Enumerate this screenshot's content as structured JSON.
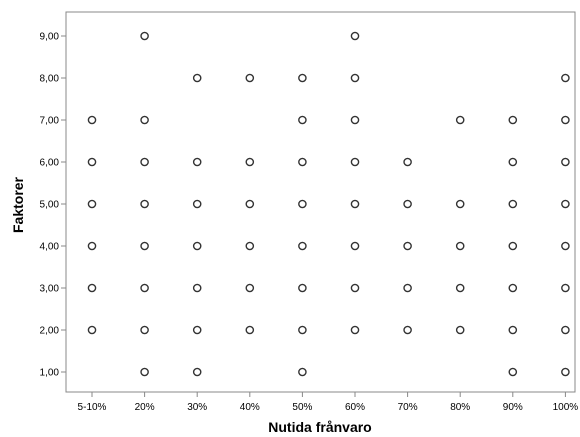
{
  "chart_data": {
    "type": "scatter",
    "title": "",
    "xlabel": "Nutida frånvaro",
    "ylabel": "Faktorer",
    "x_categories": [
      "5-10%",
      "20%",
      "30%",
      "40%",
      "50%",
      "60%",
      "70%",
      "80%",
      "90%",
      "100%"
    ],
    "y_tick_labels": [
      "1,00",
      "2,00",
      "3,00",
      "4,00",
      "5,00",
      "6,00",
      "7,00",
      "8,00",
      "9,00"
    ],
    "ylim": [
      1,
      9
    ],
    "grid": false,
    "marker": "hollow-circle",
    "marker_color": "#333333",
    "points": [
      {
        "x": "5-10%",
        "y": 2
      },
      {
        "x": "5-10%",
        "y": 3
      },
      {
        "x": "5-10%",
        "y": 4
      },
      {
        "x": "5-10%",
        "y": 5
      },
      {
        "x": "5-10%",
        "y": 6
      },
      {
        "x": "5-10%",
        "y": 7
      },
      {
        "x": "20%",
        "y": 1
      },
      {
        "x": "20%",
        "y": 2
      },
      {
        "x": "20%",
        "y": 3
      },
      {
        "x": "20%",
        "y": 4
      },
      {
        "x": "20%",
        "y": 5
      },
      {
        "x": "20%",
        "y": 6
      },
      {
        "x": "20%",
        "y": 7
      },
      {
        "x": "20%",
        "y": 9
      },
      {
        "x": "30%",
        "y": 1
      },
      {
        "x": "30%",
        "y": 2
      },
      {
        "x": "30%",
        "y": 3
      },
      {
        "x": "30%",
        "y": 4
      },
      {
        "x": "30%",
        "y": 5
      },
      {
        "x": "30%",
        "y": 6
      },
      {
        "x": "30%",
        "y": 8
      },
      {
        "x": "40%",
        "y": 2
      },
      {
        "x": "40%",
        "y": 3
      },
      {
        "x": "40%",
        "y": 4
      },
      {
        "x": "40%",
        "y": 5
      },
      {
        "x": "40%",
        "y": 6
      },
      {
        "x": "40%",
        "y": 8
      },
      {
        "x": "50%",
        "y": 1
      },
      {
        "x": "50%",
        "y": 2
      },
      {
        "x": "50%",
        "y": 3
      },
      {
        "x": "50%",
        "y": 4
      },
      {
        "x": "50%",
        "y": 5
      },
      {
        "x": "50%",
        "y": 6
      },
      {
        "x": "50%",
        "y": 7
      },
      {
        "x": "50%",
        "y": 8
      },
      {
        "x": "60%",
        "y": 2
      },
      {
        "x": "60%",
        "y": 3
      },
      {
        "x": "60%",
        "y": 4
      },
      {
        "x": "60%",
        "y": 5
      },
      {
        "x": "60%",
        "y": 6
      },
      {
        "x": "60%",
        "y": 7
      },
      {
        "x": "60%",
        "y": 8
      },
      {
        "x": "60%",
        "y": 9
      },
      {
        "x": "70%",
        "y": 2
      },
      {
        "x": "70%",
        "y": 3
      },
      {
        "x": "70%",
        "y": 4
      },
      {
        "x": "70%",
        "y": 5
      },
      {
        "x": "70%",
        "y": 6
      },
      {
        "x": "80%",
        "y": 2
      },
      {
        "x": "80%",
        "y": 3
      },
      {
        "x": "80%",
        "y": 4
      },
      {
        "x": "80%",
        "y": 5
      },
      {
        "x": "80%",
        "y": 7
      },
      {
        "x": "90%",
        "y": 1
      },
      {
        "x": "90%",
        "y": 2
      },
      {
        "x": "90%",
        "y": 3
      },
      {
        "x": "90%",
        "y": 4
      },
      {
        "x": "90%",
        "y": 5
      },
      {
        "x": "90%",
        "y": 6
      },
      {
        "x": "90%",
        "y": 7
      },
      {
        "x": "100%",
        "y": 1
      },
      {
        "x": "100%",
        "y": 2
      },
      {
        "x": "100%",
        "y": 3
      },
      {
        "x": "100%",
        "y": 4
      },
      {
        "x": "100%",
        "y": 5
      },
      {
        "x": "100%",
        "y": 6
      },
      {
        "x": "100%",
        "y": 7
      },
      {
        "x": "100%",
        "y": 8
      }
    ]
  }
}
